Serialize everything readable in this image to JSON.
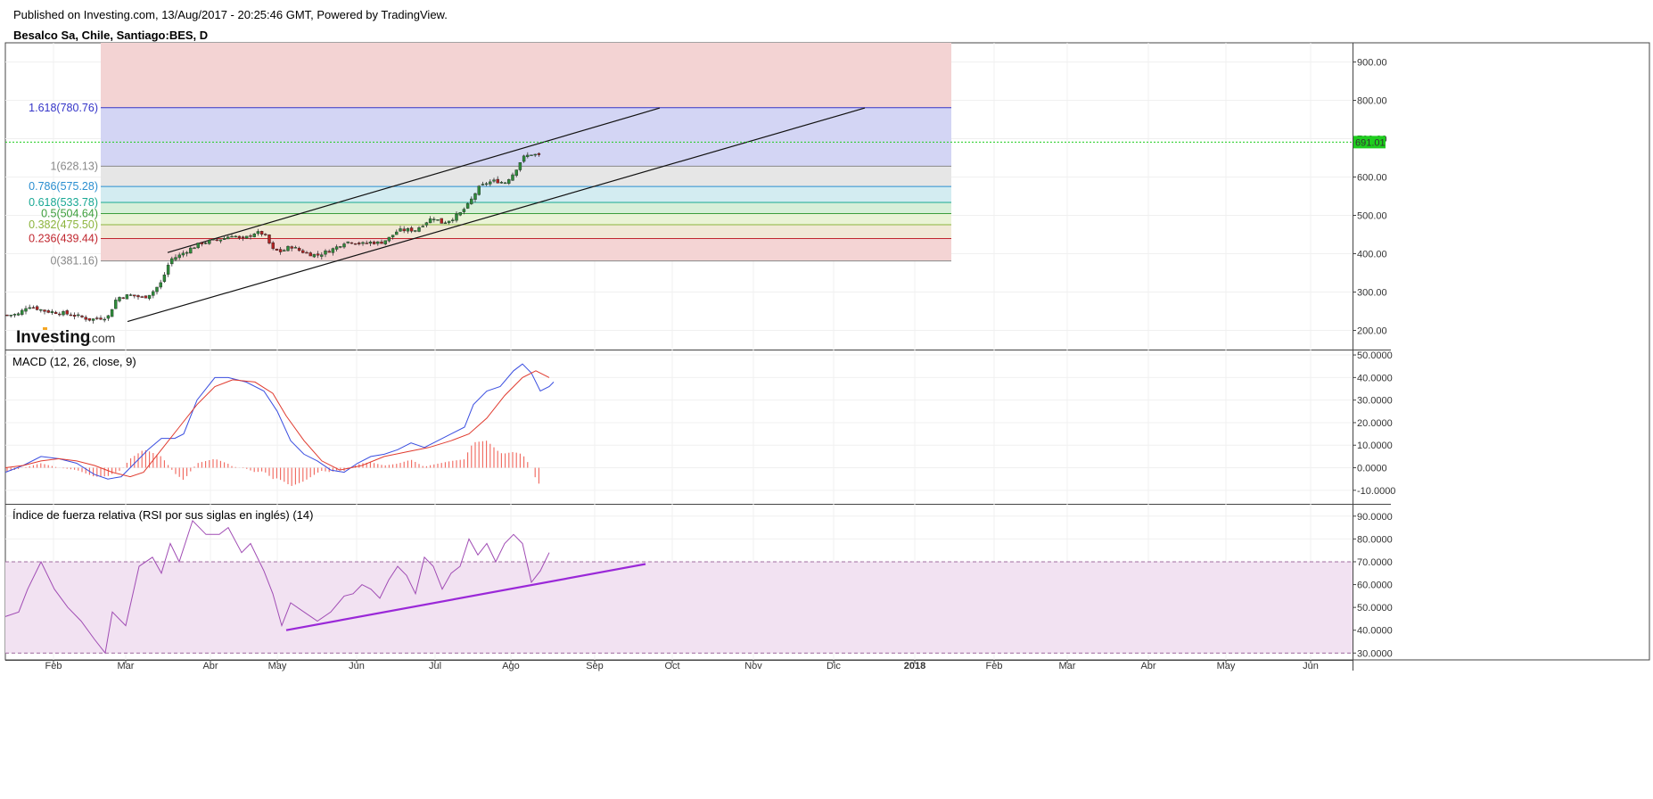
{
  "header": {
    "published": "Published on Investing.com, 13/Aug/2017 - 20:25:46 GMT, Powered by TradingView.",
    "symbol": "Besalco Sa, Chile, Santiago:BES, D"
  },
  "logo": {
    "main": "Investing",
    "suffix": ".com"
  },
  "colors": {
    "up": "#2e8b3a",
    "down": "#b22222",
    "macd": "#3a4ee0",
    "signal": "#e03a2e",
    "hist": "#f0645a",
    "rsi": "#a04cb4",
    "rsi_trend": "#9a28d8",
    "last_price_bg": "#1ecd1e"
  },
  "chart_data": [
    {
      "type": "candlestick",
      "title": "Besalco Sa, Chile, Santiago:BES, D",
      "ylim": [
        150,
        950
      ],
      "yticks": [
        200,
        300,
        400,
        500,
        600,
        700,
        800,
        900
      ],
      "ytick_labels": [
        "200.00",
        "300.00",
        "400.00",
        "500.00",
        "600.00",
        "700.00",
        "800.00",
        "900.00"
      ],
      "last_price": 691.01,
      "last_price_label": "691.01",
      "x_months": [
        "Feb",
        "Mar",
        "Abr",
        "May",
        "Jun",
        "Jul",
        "Ago",
        "Sep",
        "Oct",
        "Nov",
        "Dic",
        "2018",
        "Feb",
        "Mar",
        "Abr",
        "May",
        "Jun"
      ],
      "close_path": [
        [
          0,
          240
        ],
        [
          15,
          242
        ],
        [
          25,
          265
        ],
        [
          45,
          250
        ],
        [
          65,
          245
        ],
        [
          85,
          235
        ],
        [
          95,
          228
        ],
        [
          105,
          232
        ],
        [
          115,
          235
        ],
        [
          125,
          285
        ],
        [
          140,
          292
        ],
        [
          155,
          285
        ],
        [
          165,
          300
        ],
        [
          175,
          325
        ],
        [
          185,
          385
        ],
        [
          195,
          395
        ],
        [
          205,
          410
        ],
        [
          220,
          428
        ],
        [
          235,
          435
        ],
        [
          245,
          440
        ],
        [
          255,
          450
        ],
        [
          265,
          435
        ],
        [
          280,
          455
        ],
        [
          290,
          452
        ],
        [
          300,
          410
        ],
        [
          310,
          405
        ],
        [
          320,
          420
        ],
        [
          330,
          408
        ],
        [
          340,
          400
        ],
        [
          350,
          396
        ],
        [
          360,
          405
        ],
        [
          370,
          415
        ],
        [
          380,
          430
        ],
        [
          390,
          432
        ],
        [
          400,
          425
        ],
        [
          410,
          430
        ],
        [
          420,
          428
        ],
        [
          430,
          440
        ],
        [
          440,
          460
        ],
        [
          450,
          462
        ],
        [
          460,
          462
        ],
        [
          470,
          480
        ],
        [
          480,
          495
        ],
        [
          490,
          480
        ],
        [
          500,
          490
        ],
        [
          510,
          505
        ],
        [
          520,
          530
        ],
        [
          530,
          570
        ],
        [
          540,
          585
        ],
        [
          550,
          590
        ],
        [
          560,
          585
        ],
        [
          570,
          610
        ],
        [
          580,
          650
        ],
        [
          590,
          660
        ],
        [
          600,
          655
        ],
        [
          610,
          615
        ],
        [
          620,
          640
        ],
        [
          630,
          691
        ]
      ],
      "fibonacci": {
        "levels": [
          {
            "label": "0(381.16)",
            "value": 381.16,
            "color": "#888888"
          },
          {
            "label": "0.236(439.44)",
            "value": 439.44,
            "color": "#c0262e"
          },
          {
            "label": "0.382(475.50)",
            "value": 475.5,
            "color": "#8cb43c"
          },
          {
            "label": "0.5(504.64)",
            "value": 504.64,
            "color": "#3c9e3c"
          },
          {
            "label": "0.618(533.78)",
            "value": 533.78,
            "color": "#19a894"
          },
          {
            "label": "0.786(575.28)",
            "value": 575.28,
            "color": "#2a8ed0"
          },
          {
            "label": "1(628.13)",
            "value": 628.13,
            "color": "#888888"
          },
          {
            "label": "1.618(780.76)",
            "value": 780.76,
            "color": "#3434c8"
          }
        ],
        "top": 950
      },
      "channel": {
        "upper": [
          [
            188,
            403
          ],
          [
            740,
            780
          ]
        ],
        "lower": [
          [
            143,
            223
          ],
          [
            970,
            780
          ]
        ]
      }
    },
    {
      "type": "line",
      "title": "MACD (12, 26, close, 9)",
      "ylim": [
        -16,
        52
      ],
      "yticks": [
        -10,
        0,
        10,
        20,
        30,
        40,
        50
      ],
      "ytick_labels": [
        "-10.0000",
        "0.0000",
        "10.0000",
        "20.0000",
        "30.0000",
        "40.0000",
        "50.0000"
      ],
      "series": [
        {
          "name": "MACD",
          "points": [
            [
              0,
              -2
            ],
            [
              20,
              1
            ],
            [
              40,
              5
            ],
            [
              60,
              4
            ],
            [
              80,
              2
            ],
            [
              100,
              -3
            ],
            [
              115,
              -5
            ],
            [
              130,
              -4
            ],
            [
              145,
              2
            ],
            [
              160,
              8
            ],
            [
              175,
              13
            ],
            [
              190,
              13
            ],
            [
              200,
              15
            ],
            [
              215,
              30
            ],
            [
              235,
              40
            ],
            [
              250,
              40
            ],
            [
              270,
              38
            ],
            [
              290,
              34
            ],
            [
              305,
              25
            ],
            [
              320,
              12
            ],
            [
              335,
              6
            ],
            [
              350,
              3
            ],
            [
              365,
              -1
            ],
            [
              380,
              -2
            ],
            [
              395,
              2
            ],
            [
              410,
              5
            ],
            [
              425,
              6
            ],
            [
              440,
              8
            ],
            [
              455,
              11
            ],
            [
              470,
              9
            ],
            [
              485,
              12
            ],
            [
              500,
              15
            ],
            [
              515,
              18
            ],
            [
              525,
              28
            ],
            [
              540,
              34
            ],
            [
              555,
              36
            ],
            [
              570,
              43
            ],
            [
              580,
              46
            ],
            [
              590,
              42
            ],
            [
              600,
              34
            ],
            [
              610,
              36
            ],
            [
              615,
              38
            ]
          ]
        },
        {
          "name": "Signal",
          "points": [
            [
              0,
              0
            ],
            [
              20,
              1
            ],
            [
              40,
              3
            ],
            [
              60,
              4
            ],
            [
              80,
              3
            ],
            [
              100,
              1
            ],
            [
              120,
              -2
            ],
            [
              140,
              -4
            ],
            [
              155,
              -2
            ],
            [
              175,
              8
            ],
            [
              195,
              18
            ],
            [
              215,
              28
            ],
            [
              235,
              36
            ],
            [
              255,
              39
            ],
            [
              280,
              38
            ],
            [
              300,
              33
            ],
            [
              315,
              23
            ],
            [
              335,
              12
            ],
            [
              355,
              3
            ],
            [
              375,
              -1
            ],
            [
              400,
              1
            ],
            [
              425,
              5
            ],
            [
              450,
              7
            ],
            [
              475,
              9
            ],
            [
              500,
              12
            ],
            [
              520,
              15
            ],
            [
              540,
              22
            ],
            [
              560,
              32
            ],
            [
              580,
              40
            ],
            [
              595,
              43
            ],
            [
              610,
              40
            ]
          ]
        }
      ]
    },
    {
      "type": "line",
      "title": "Índice de fuerza relativa (RSI por sus siglas en inglés) (14)",
      "ylim": [
        27,
        95
      ],
      "yticks": [
        30,
        40,
        50,
        60,
        70,
        80,
        90
      ],
      "ytick_labels": [
        "30.0000",
        "40.0000",
        "50.0000",
        "60.0000",
        "70.0000",
        "80.0000",
        "90.0000"
      ],
      "upper_band": 70,
      "lower_band": 30,
      "series": [
        {
          "name": "RSI",
          "points": [
            [
              0,
              46
            ],
            [
              15,
              48
            ],
            [
              25,
              58
            ],
            [
              40,
              70
            ],
            [
              55,
              58
            ],
            [
              70,
              50
            ],
            [
              85,
              44
            ],
            [
              100,
              36
            ],
            [
              112,
              30
            ],
            [
              120,
              48
            ],
            [
              135,
              42
            ],
            [
              150,
              68
            ],
            [
              165,
              72
            ],
            [
              175,
              65
            ],
            [
              185,
              78
            ],
            [
              195,
              70
            ],
            [
              210,
              88
            ],
            [
              225,
              82
            ],
            [
              240,
              82
            ],
            [
              250,
              85
            ],
            [
              265,
              74
            ],
            [
              275,
              78
            ],
            [
              290,
              66
            ],
            [
              300,
              56
            ],
            [
              310,
              42
            ],
            [
              320,
              52
            ],
            [
              335,
              48
            ],
            [
              350,
              44
            ],
            [
              365,
              48
            ],
            [
              380,
              55
            ],
            [
              390,
              56
            ],
            [
              400,
              60
            ],
            [
              410,
              58
            ],
            [
              420,
              54
            ],
            [
              430,
              62
            ],
            [
              440,
              68
            ],
            [
              450,
              64
            ],
            [
              460,
              56
            ],
            [
              470,
              72
            ],
            [
              480,
              68
            ],
            [
              490,
              58
            ],
            [
              500,
              65
            ],
            [
              510,
              68
            ],
            [
              520,
              80
            ],
            [
              530,
              73
            ],
            [
              540,
              78
            ],
            [
              550,
              70
            ],
            [
              560,
              78
            ],
            [
              570,
              82
            ],
            [
              580,
              78
            ],
            [
              590,
              61
            ],
            [
              600,
              66
            ],
            [
              610,
              74
            ]
          ]
        },
        {
          "name": "Trend",
          "points": [
            [
              315,
              40
            ],
            [
              718,
              69
            ]
          ]
        }
      ]
    }
  ]
}
